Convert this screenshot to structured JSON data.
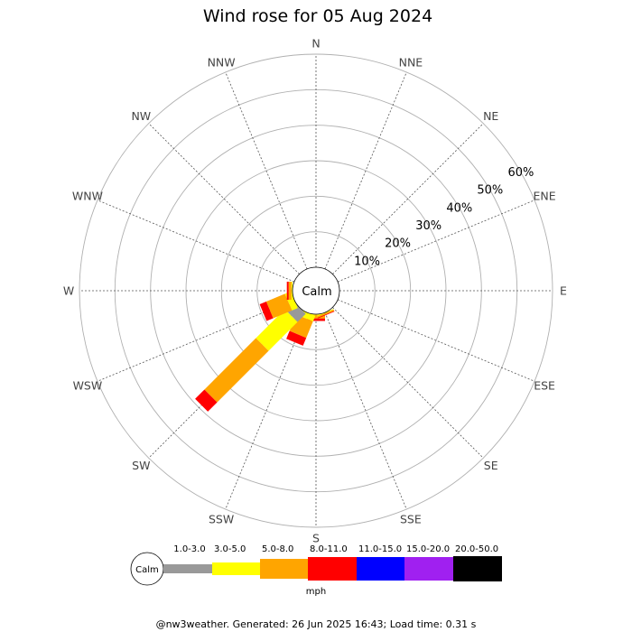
{
  "chart_data": {
    "type": "wind-rose",
    "title": "Wind rose for 05 Aug 2024",
    "calm_label": "Calm",
    "directions": [
      "N",
      "NNE",
      "NE",
      "ENE",
      "E",
      "ESE",
      "SE",
      "SSE",
      "S",
      "SSW",
      "SW",
      "WSW",
      "W",
      "WNW",
      "NW",
      "NNW"
    ],
    "radial_ticks": [
      "10%",
      "20%",
      "30%",
      "40%",
      "50%",
      "60%"
    ],
    "radial_max": 60,
    "speed_bins": [
      {
        "label": "1.0-3.0",
        "color": "#999999"
      },
      {
        "label": "3.0-5.0",
        "color": "#ffff00"
      },
      {
        "label": "5.0-8.0",
        "color": "#ffa500"
      },
      {
        "label": "8.0-11.0",
        "color": "#ff0000"
      },
      {
        "label": "11.0-15.0",
        "color": "#0000ff"
      },
      {
        "label": "15.0-20.0",
        "color": "#a020f0"
      },
      {
        "label": "20.0-50.0",
        "color": "#000000"
      }
    ],
    "units": "mph",
    "data": {
      "S": [
        0.0,
        0.2,
        1.0,
        0.7,
        0,
        0,
        0
      ],
      "SSW": [
        0.0,
        1.7,
        5.0,
        2.4,
        0,
        0,
        0
      ],
      "SW": [
        3.3,
        11.5,
        20.5,
        3.7,
        0,
        0,
        0
      ],
      "WSW": [
        0.0,
        1.8,
        5.7,
        2.0,
        0,
        0,
        0
      ],
      "W": [
        0.0,
        0.3,
        0.8,
        0.5,
        0,
        0,
        0
      ],
      "SSE": [
        0.0,
        0.2,
        0.4,
        0.2,
        0,
        0,
        0
      ]
    }
  },
  "footer": {
    "text": "@nw3weather. Generated: 26 Jun 2025 16:43; Load time: 0.31 s"
  }
}
